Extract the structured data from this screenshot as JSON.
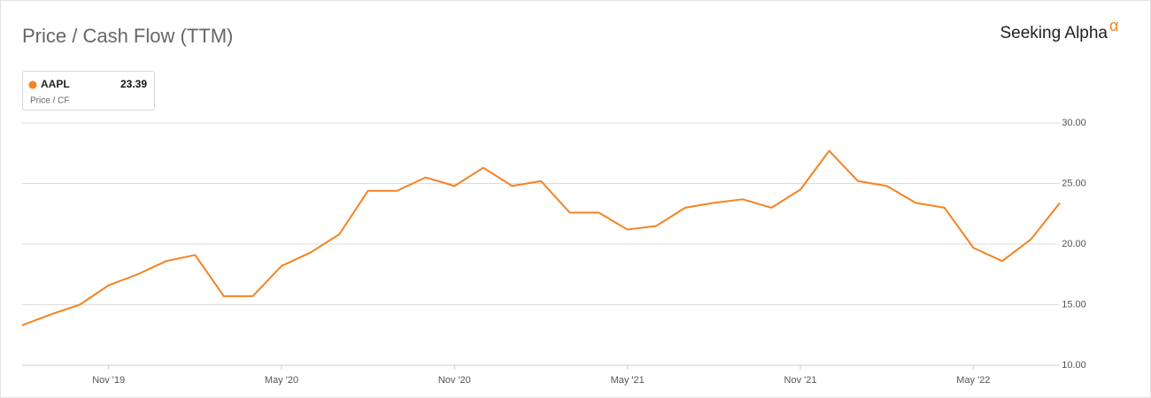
{
  "chart_data": {
    "type": "line",
    "title": "Price / Cash Flow (TTM)",
    "brand": "Seeking Alpha",
    "brand_mark": "α",
    "legend_subtitle": "Price / CF",
    "x": [
      "2019-08",
      "2019-09",
      "2019-10",
      "2019-11",
      "2019-12",
      "2020-01",
      "2020-02",
      "2020-03",
      "2020-04",
      "2020-05",
      "2020-06",
      "2020-07",
      "2020-08",
      "2020-09",
      "2020-10",
      "2020-11",
      "2020-12",
      "2021-01",
      "2021-02",
      "2021-03",
      "2021-04",
      "2021-05",
      "2021-06",
      "2021-07",
      "2021-08",
      "2021-09",
      "2021-10",
      "2021-11",
      "2021-12",
      "2022-01",
      "2022-02",
      "2022-03",
      "2022-04",
      "2022-05",
      "2022-06",
      "2022-07",
      "2022-08"
    ],
    "series": [
      {
        "name": "AAPL",
        "color": "#f58220",
        "values": [
          13.3,
          14.2,
          15.0,
          16.6,
          17.5,
          18.6,
          19.1,
          15.7,
          15.7,
          18.2,
          19.3,
          20.8,
          24.4,
          24.4,
          25.5,
          24.8,
          26.3,
          24.8,
          25.2,
          22.6,
          22.6,
          21.2,
          21.5,
          23.0,
          23.4,
          23.7,
          23.0,
          24.5,
          27.7,
          25.2,
          24.8,
          23.4,
          23.0,
          19.7,
          18.6,
          20.4,
          23.39
        ]
      }
    ],
    "xlim": [
      "2019-08",
      "2022-08"
    ],
    "xticks": [
      {
        "value": "2019-11",
        "label": "Nov '19"
      },
      {
        "value": "2020-05",
        "label": "May '20"
      },
      {
        "value": "2020-11",
        "label": "Nov '20"
      },
      {
        "value": "2021-05",
        "label": "May '21"
      },
      {
        "value": "2021-11",
        "label": "Nov '21"
      },
      {
        "value": "2022-05",
        "label": "May '22"
      }
    ],
    "ylim": [
      10,
      30
    ],
    "yticks": [
      {
        "value": 10,
        "label": "10.00"
      },
      {
        "value": 15,
        "label": "15.00"
      },
      {
        "value": 20,
        "label": "20.00"
      },
      {
        "value": 25,
        "label": "25.00"
      },
      {
        "value": 30,
        "label": "30.00"
      }
    ],
    "grid": true
  }
}
